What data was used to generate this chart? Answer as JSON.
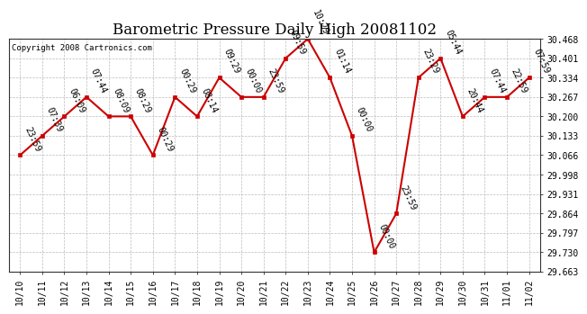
{
  "title": "Barometric Pressure Daily High 20081102",
  "copyright": "Copyright 2008 Cartronics.com",
  "x_labels": [
    "10/10",
    "10/11",
    "10/12",
    "10/13",
    "10/14",
    "10/15",
    "10/16",
    "10/17",
    "10/18",
    "10/19",
    "10/20",
    "10/21",
    "10/22",
    "10/23",
    "10/24",
    "10/25",
    "10/26",
    "10/27",
    "10/28",
    "10/29",
    "10/30",
    "10/31",
    "11/01",
    "11/02"
  ],
  "y_values": [
    30.066,
    30.133,
    30.2,
    30.267,
    30.2,
    30.2,
    30.066,
    30.267,
    30.2,
    30.334,
    30.267,
    30.267,
    30.401,
    30.468,
    30.334,
    30.133,
    29.73,
    29.864,
    30.334,
    30.401,
    30.2,
    30.267,
    30.267,
    30.334
  ],
  "point_labels": [
    "23:59",
    "07:39",
    "06:09",
    "07:44",
    "08:09",
    "08:29",
    "00:29",
    "00:29",
    "08:14",
    "09:29",
    "00:00",
    "23:59",
    "09:59",
    "10:29",
    "01:14",
    "00:00",
    "00:00",
    "23:59",
    "23:29",
    "05:44",
    "20:44",
    "07:44",
    "22:59",
    "07:59"
  ],
  "y_ticks": [
    29.663,
    29.73,
    29.797,
    29.864,
    29.931,
    29.998,
    30.066,
    30.133,
    30.2,
    30.267,
    30.334,
    30.401,
    30.468
  ],
  "y_min": 29.663,
  "y_max": 30.468,
  "line_color": "#cc0000",
  "marker_color": "#cc0000",
  "bg_color": "#ffffff",
  "plot_bg_color": "#ffffff",
  "grid_color": "#bbbbbb",
  "title_fontsize": 12,
  "annotation_fontsize": 7,
  "tick_fontsize": 7,
  "copyright_fontsize": 6.5
}
